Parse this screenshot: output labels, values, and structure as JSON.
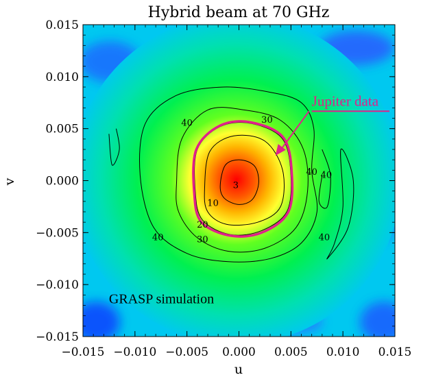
{
  "chart_data": {
    "type": "heatmap",
    "title": "Hybrid beam at 70 GHz",
    "xlabel": "u",
    "ylabel": "v",
    "xlim": [
      -0.015,
      0.015
    ],
    "ylim": [
      -0.015,
      0.015
    ],
    "x_ticks": [
      "−0.015",
      "−0.010",
      "−0.005",
      "0.000",
      "0.005",
      "0.010",
      "0.015"
    ],
    "y_ticks": [
      "−0.015",
      "−0.010",
      "−0.005",
      "0.000",
      "0.005",
      "0.010",
      "0.015"
    ],
    "x_tick_values": [
      -0.015,
      -0.01,
      -0.005,
      0.0,
      0.005,
      0.01,
      0.015
    ],
    "y_tick_values": [
      -0.015,
      -0.01,
      -0.005,
      0.0,
      0.005,
      0.01,
      0.015
    ],
    "colormap": [
      "#00008b",
      "#1e50ff",
      "#00d8ff",
      "#00ff40",
      "#ffff00",
      "#ff8c00",
      "#ff0000"
    ],
    "contours": [
      {
        "level": "3",
        "points": [
          [
            -0.0018,
            -0.0005
          ],
          [
            -0.0013,
            0.0015
          ],
          [
            0.0001,
            0.002
          ],
          [
            0.0015,
            0.0014
          ],
          [
            0.0019,
            -0.0002
          ],
          [
            0.0013,
            -0.0018
          ],
          [
            0.0,
            -0.0023
          ],
          [
            -0.0014,
            -0.0017
          ]
        ]
      },
      {
        "level": "10",
        "points": [
          [
            -0.0033,
            -0.0008
          ],
          [
            -0.0028,
            0.0028
          ],
          [
            -0.0005,
            0.0043
          ],
          [
            0.0025,
            0.0038
          ],
          [
            0.0042,
            0.001
          ],
          [
            0.004,
            -0.0025
          ],
          [
            0.0018,
            -0.004
          ],
          [
            -0.0012,
            -0.0042
          ],
          [
            -0.003,
            -0.003
          ]
        ]
      },
      {
        "level": "20",
        "points": [
          [
            -0.0042,
            -0.001
          ],
          [
            -0.004,
            0.003
          ],
          [
            -0.0018,
            0.0052
          ],
          [
            0.0012,
            0.0055
          ],
          [
            0.0042,
            0.004
          ],
          [
            0.005,
            0.0005
          ],
          [
            0.0046,
            -0.003
          ],
          [
            0.0022,
            -0.0048
          ],
          [
            -0.0008,
            -0.0052
          ],
          [
            -0.0035,
            -0.0038
          ]
        ]
      },
      {
        "level": "30",
        "points": [
          [
            -0.006,
            -0.0002
          ],
          [
            -0.0055,
            0.004
          ],
          [
            -0.003,
            0.0068
          ],
          [
            0.0005,
            0.0068
          ],
          [
            0.004,
            0.0058
          ],
          [
            0.0062,
            0.003
          ],
          [
            0.0066,
            -0.001
          ],
          [
            0.0055,
            -0.0045
          ],
          [
            0.0025,
            -0.0065
          ],
          [
            -0.001,
            -0.0068
          ],
          [
            -0.004,
            -0.0055
          ],
          [
            -0.0058,
            -0.003
          ]
        ]
      },
      {
        "level": "40",
        "points": [
          [
            -0.0095,
            0.0005
          ],
          [
            -0.009,
            0.0055
          ],
          [
            -0.006,
            0.0082
          ],
          [
            -0.0015,
            0.009
          ],
          [
            0.003,
            0.0085
          ],
          [
            0.006,
            0.0075
          ],
          [
            0.0072,
            0.005
          ],
          [
            0.007,
            0.001
          ],
          [
            0.0075,
            -0.003
          ],
          [
            0.006,
            -0.006
          ],
          [
            0.003,
            -0.0075
          ],
          [
            -0.001,
            -0.0078
          ],
          [
            -0.005,
            -0.007
          ],
          [
            -0.0082,
            -0.0045
          ]
        ]
      },
      {
        "level": "40",
        "points": [
          [
            0.008,
            0.003
          ],
          [
            0.0088,
            0.0005
          ],
          [
            0.0085,
            -0.0025
          ],
          [
            0.0077,
            -0.002
          ],
          [
            0.008,
            0.0005
          ]
        ]
      },
      {
        "level": "40",
        "points": [
          [
            0.0098,
            0.003
          ],
          [
            0.011,
            0.0
          ],
          [
            0.0105,
            -0.0045
          ],
          [
            0.0085,
            -0.0075
          ],
          [
            0.0092,
            -0.006
          ],
          [
            0.01,
            -0.0025
          ]
        ]
      },
      {
        "level": "40",
        "points": [
          [
            -0.0125,
            0.0045
          ],
          [
            -0.0122,
            0.0015
          ],
          [
            -0.0115,
            0.003
          ],
          [
            -0.0118,
            0.005
          ]
        ]
      }
    ],
    "contour_labels": [
      {
        "text": "3",
        "x": -0.0003,
        "y": -0.0005
      },
      {
        "text": "10",
        "x": -0.0025,
        "y": -0.0022
      },
      {
        "text": "20",
        "x": -0.0035,
        "y": -0.0043
      },
      {
        "text": "30",
        "x": 0.0027,
        "y": 0.0058
      },
      {
        "text": "30",
        "x": -0.0035,
        "y": -0.0057
      },
      {
        "text": "40",
        "x": -0.005,
        "y": 0.0055
      },
      {
        "text": "40",
        "x": 0.007,
        "y": 0.0008
      },
      {
        "text": "40",
        "x": 0.0084,
        "y": 0.0005
      },
      {
        "text": "40",
        "x": -0.0078,
        "y": -0.0055
      },
      {
        "text": "40",
        "x": 0.0082,
        "y": -0.0055
      }
    ],
    "highlight_contour": {
      "color": "#e0218a",
      "points": [
        [
          -0.0043,
          -0.0012
        ],
        [
          -0.0041,
          0.003
        ],
        [
          -0.0018,
          0.0053
        ],
        [
          0.0012,
          0.0056
        ],
        [
          0.0043,
          0.0041
        ],
        [
          0.0051,
          0.0004
        ],
        [
          0.0047,
          -0.0031
        ],
        [
          0.0022,
          -0.005
        ],
        [
          -0.0008,
          -0.0053
        ],
        [
          -0.0036,
          -0.004
        ]
      ]
    },
    "annotations": [
      {
        "text": "Jupiter data",
        "color": "#e0218a",
        "x": 0.007,
        "y": 0.0072,
        "arrow_to": [
          0.0035,
          0.0024
        ]
      },
      {
        "text": "GRASP simulation",
        "color": "#000000",
        "x": -0.0125,
        "y": -0.0118
      }
    ]
  }
}
